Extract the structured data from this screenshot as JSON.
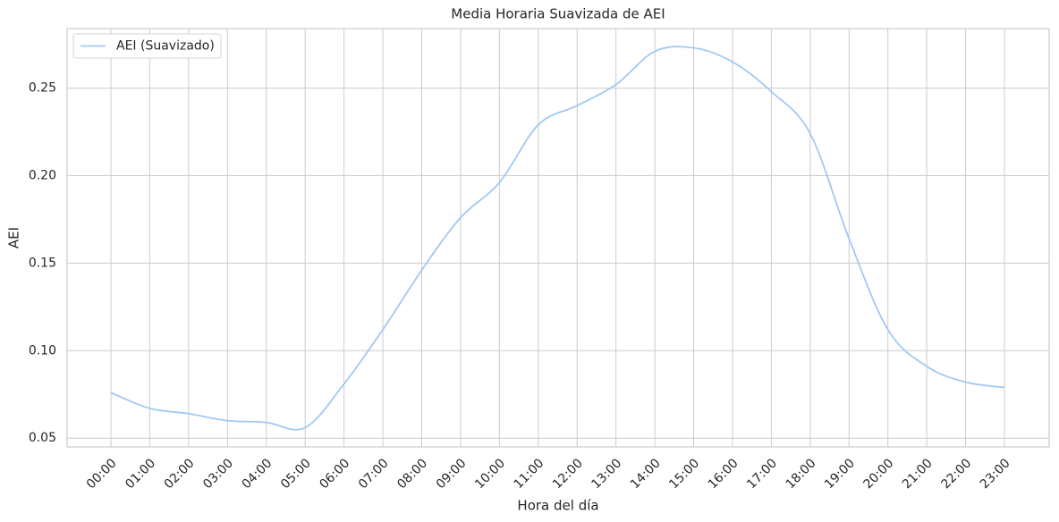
{
  "chart_data": {
    "type": "line",
    "title": "Media Horaria Suavizada de AEI",
    "x_label": "Hora del día",
    "y_label": "AEI",
    "categories": [
      "00:00",
      "01:00",
      "02:00",
      "03:00",
      "04:00",
      "05:00",
      "06:00",
      "07:00",
      "08:00",
      "09:00",
      "10:00",
      "11:00",
      "12:00",
      "13:00",
      "14:00",
      "15:00",
      "16:00",
      "17:00",
      "18:00",
      "19:00",
      "20:00",
      "21:00",
      "22:00",
      "23:00"
    ],
    "series": [
      {
        "name": "AEI (Suavizado)",
        "color": "#a1c9f4",
        "values": [
          0.076,
          0.067,
          0.064,
          0.06,
          0.059,
          0.056,
          0.081,
          0.112,
          0.146,
          0.176,
          0.196,
          0.229,
          0.24,
          0.252,
          0.271,
          0.273,
          0.265,
          0.248,
          0.224,
          0.164,
          0.112,
          0.091,
          0.082,
          0.079
        ]
      }
    ],
    "ylim": [
      0.045,
      0.284
    ],
    "yticks": [
      0.05,
      {
        "value": 0.1,
        "label": "0.10"
      },
      0.15,
      {
        "value": 0.2,
        "label": "0.20"
      },
      0.25
    ],
    "grid": true,
    "legend": "upper left"
  }
}
